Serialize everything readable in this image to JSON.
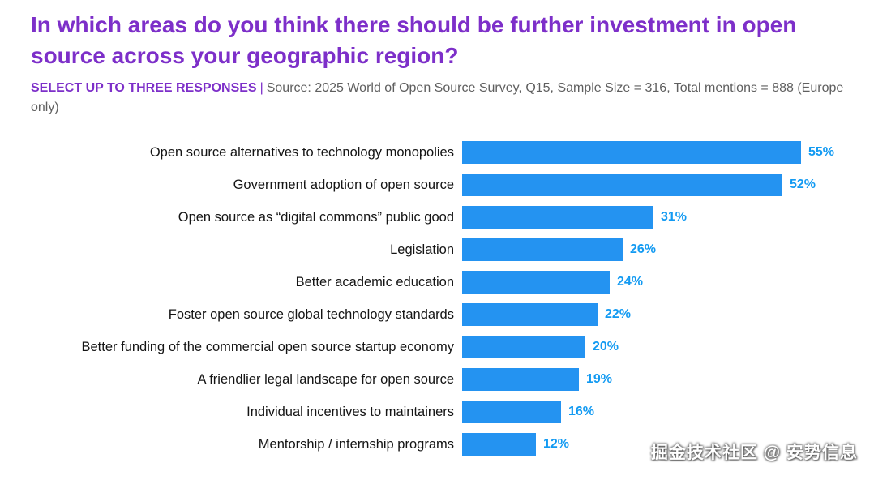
{
  "page": {
    "title": "In which areas do you think there should be further investment in open source across your geographic region?",
    "subtitle_bold": "SELECT UP TO THREE RESPONSES",
    "subtitle_sep": "|",
    "subtitle_rest": "Source: 2025 World of Open Source Survey, Q15, Sample Size = 316, Total mentions = 888 (Europe only)",
    "watermark": "掘金技术社区 @ 安势信息"
  },
  "colors": {
    "title_purple": "#7d2fc9",
    "bar_blue": "#2493f1",
    "value_blue": "#129af2",
    "subtitle_gray": "#5f5f5f",
    "background": "#ffffff"
  },
  "chart_data": {
    "type": "bar",
    "orientation": "horizontal",
    "title": "In which areas do you think there should be further investment in open source across your geographic region?",
    "xlabel": "",
    "ylabel": "",
    "unit": "%",
    "xlim": [
      0,
      60
    ],
    "grid": false,
    "legend": "none",
    "categories": [
      "Open source alternatives to technology monopolies",
      "Government adoption of open source",
      "Open source as “digital commons” public good",
      "Legislation",
      "Better academic education",
      "Foster open source global technology standards",
      "Better funding of the commercial open source startup economy",
      "A friendlier legal landscape for open source",
      "Individual incentives to maintainers",
      "Mentorship / internship programs"
    ],
    "values": [
      55,
      52,
      31,
      26,
      24,
      22,
      20,
      19,
      16,
      12
    ],
    "value_labels": [
      "55%",
      "52%",
      "31%",
      "26%",
      "24%",
      "22%",
      "20%",
      "19%",
      "16%",
      "12%"
    ]
  }
}
